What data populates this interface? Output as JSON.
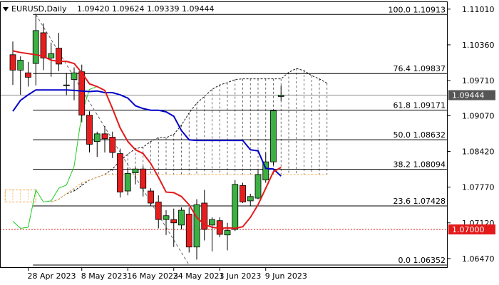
{
  "header": {
    "symbol_timeframe": "EURUSD,Daily",
    "ohlc": "1.09420 1.09624 1.09339 1.09444"
  },
  "colors": {
    "bull_body": "#3cb043",
    "bear_body": "#e61e1e",
    "wick": "#000000",
    "red_ma": "#e31a1a",
    "blue_ma": "#0000c8",
    "green_line": "#22cc22",
    "cloud_edge": "#000000",
    "cloud_fill_hatch": "#777777",
    "fib_line": "#000000",
    "current_price_line": "#8a8a8a",
    "alert_line": "#e31a1a",
    "alert_tag": "#e31a1a",
    "orange_cloud": "#f0a848"
  },
  "chart_data": {
    "type": "candlestick",
    "title": "EURUSD,Daily",
    "ylim": [
      1.063,
      1.1115
    ],
    "y_ticks": [
      "1.11010",
      "1.10360",
      "1.09710",
      "1.09070",
      "1.08420",
      "1.07770",
      "1.07120",
      "1.06470"
    ],
    "x_tick_labels": [
      "28 Apr 2023",
      "8 May 2023",
      "16 May 2023",
      "24 May 2023",
      "1 Jun 2023",
      "9 Jun 2023"
    ],
    "x_tick_candle_index": [
      2,
      9,
      15,
      21,
      27,
      33
    ],
    "candles": [
      {
        "o": 1.1018,
        "h": 1.1042,
        "l": 1.0963,
        "c": 1.099
      },
      {
        "o": 1.099,
        "h": 1.1015,
        "l": 1.0945,
        "c": 1.1008
      },
      {
        "o": 1.0985,
        "h": 1.1005,
        "l": 1.096,
        "c": 1.0977
      },
      {
        "o": 1.1002,
        "h": 1.1092,
        "l": 1.0962,
        "c": 1.1062
      },
      {
        "o": 1.1058,
        "h": 1.1075,
        "l": 1.099,
        "c": 1.1012
      },
      {
        "o": 1.1012,
        "h": 1.104,
        "l": 1.0978,
        "c": 1.102
      },
      {
        "o": 1.103,
        "h": 1.1058,
        "l": 1.0988,
        "c": 1.1001
      },
      {
        "o": 1.0962,
        "h": 1.0985,
        "l": 1.0944,
        "c": 1.0963
      },
      {
        "o": 1.0973,
        "h": 1.0995,
        "l": 1.0935,
        "c": 1.0985
      },
      {
        "o": 1.0987,
        "h": 1.1,
        "l": 1.0895,
        "c": 1.0908
      },
      {
        "o": 1.0908,
        "h": 1.0915,
        "l": 1.084,
        "c": 1.0855
      },
      {
        "o": 1.086,
        "h": 1.0878,
        "l": 1.0832,
        "c": 1.0874
      },
      {
        "o": 1.0874,
        "h": 1.0888,
        "l": 1.084,
        "c": 1.0865
      },
      {
        "o": 1.0868,
        "h": 1.0878,
        "l": 1.083,
        "c": 1.084
      },
      {
        "o": 1.0838,
        "h": 1.0847,
        "l": 1.0758,
        "c": 1.0768
      },
      {
        "o": 1.077,
        "h": 1.0812,
        "l": 1.0762,
        "c": 1.0802
      },
      {
        "o": 1.0803,
        "h": 1.0813,
        "l": 1.0782,
        "c": 1.081
      },
      {
        "o": 1.081,
        "h": 1.0815,
        "l": 1.076,
        "c": 1.0775
      },
      {
        "o": 1.077,
        "h": 1.0775,
        "l": 1.0742,
        "c": 1.0748
      },
      {
        "o": 1.075,
        "h": 1.0762,
        "l": 1.0702,
        "c": 1.0718
      },
      {
        "o": 1.0718,
        "h": 1.0735,
        "l": 1.069,
        "c": 1.0725
      },
      {
        "o": 1.0718,
        "h": 1.0738,
        "l": 1.0668,
        "c": 1.0712
      },
      {
        "o": 1.0708,
        "h": 1.074,
        "l": 1.07,
        "c": 1.0735
      },
      {
        "o": 1.0728,
        "h": 1.074,
        "l": 1.0658,
        "c": 1.0668
      },
      {
        "o": 1.0668,
        "h": 1.0755,
        "l": 1.0645,
        "c": 1.0745
      },
      {
        "o": 1.0748,
        "h": 1.0772,
        "l": 1.068,
        "c": 1.07
      },
      {
        "o": 1.0708,
        "h": 1.0722,
        "l": 1.066,
        "c": 1.0718
      },
      {
        "o": 1.0716,
        "h": 1.0722,
        "l": 1.0686,
        "c": 1.0691
      },
      {
        "o": 1.069,
        "h": 1.0712,
        "l": 1.0662,
        "c": 1.0698
      },
      {
        "o": 1.07,
        "h": 1.079,
        "l": 1.0697,
        "c": 1.0782
      },
      {
        "o": 1.078,
        "h": 1.0785,
        "l": 1.0748,
        "c": 1.075
      },
      {
        "o": 1.0752,
        "h": 1.0765,
        "l": 1.0742,
        "c": 1.076
      },
      {
        "o": 1.0757,
        "h": 1.0808,
        "l": 1.0755,
        "c": 1.08
      },
      {
        "o": 1.079,
        "h": 1.084,
        "l": 1.0785,
        "c": 1.0823
      },
      {
        "o": 1.0823,
        "h": 1.0918,
        "l": 1.0817,
        "c": 1.0916
      },
      {
        "o": 1.0942,
        "h": 1.0962,
        "l": 1.0934,
        "c": 1.0944
      }
    ],
    "red_ma": [
      1.1025,
      1.1022,
      1.102,
      1.1018,
      1.1015,
      1.1008,
      1.1006,
      1.1006,
      1.1002,
      1.0985,
      1.0965,
      1.096,
      1.0953,
      1.092,
      1.0885,
      1.086,
      1.0845,
      1.0838,
      1.082,
      1.0795,
      1.0768,
      1.0767,
      1.076,
      1.0745,
      1.0722,
      1.0709,
      1.0704,
      1.0702,
      1.0703,
      1.0702,
      1.0705,
      1.0722,
      1.0745,
      1.0775,
      1.0805,
      1.0813
    ],
    "blue_ma": [
      1.0915,
      1.0935,
      1.0945,
      1.0954,
      1.0954,
      1.0954,
      1.0954,
      1.0954,
      1.0953,
      1.0952,
      1.0951,
      1.0952,
      1.0949,
      1.0949,
      1.0945,
      1.0939,
      1.0925,
      1.092,
      1.0917,
      1.0917,
      1.0914,
      1.0906,
      1.088,
      1.0863,
      1.0862,
      1.0862,
      1.0862,
      1.0862,
      1.0862,
      1.0862,
      1.0862,
      1.0845,
      1.0843,
      1.0811,
      1.081,
      1.0797
    ],
    "green_line": [
      1.0715,
      1.0702,
      1.0704,
      1.0772,
      1.075,
      1.0752,
      1.0775,
      1.0781,
      1.0815,
      1.0911,
      1.0955,
      1.096
    ],
    "green_line_start_index": 0,
    "cloud_upper": [
      1.075,
      1.0755,
      1.0765,
      1.077,
      1.078,
      1.079,
      1.0795,
      1.08,
      1.081,
      1.0825,
      1.0837,
      1.0847,
      1.085,
      1.086,
      1.0867,
      1.0867,
      1.0873,
      1.089,
      1.0912,
      1.093,
      1.0942,
      1.0955,
      1.0963,
      1.0967,
      1.0973,
      1.0974,
      1.0974,
      1.0974,
      1.0974,
      1.0974,
      1.0974,
      1.0986,
      1.0993,
      1.0989,
      1.098,
      1.0974,
      1.0966
    ],
    "cloud_lower": [
      1.075,
      1.0755,
      1.0765,
      1.0775,
      1.0785,
      1.079,
      1.0795,
      1.08,
      1.08,
      1.08,
      1.08,
      1.08,
      1.08,
      1.08,
      1.08,
      1.08,
      1.08,
      1.08,
      1.08,
      1.08,
      1.08,
      1.08,
      1.08,
      1.08,
      1.08,
      1.08,
      1.08,
      1.08,
      1.08,
      1.08,
      1.08,
      1.08,
      1.08,
      1.08,
      1.08,
      1.08,
      1.08
    ],
    "cloud_start_index": 5,
    "orange_cloud_upper": 1.0772,
    "orange_cloud_lower": 1.075,
    "orange_cloud_range": [
      -1.0,
      3.0
    ],
    "fib_levels": [
      {
        "label": "100.0 1.10913",
        "value": 1.10913
      },
      {
        "label": "76.4 1.09837",
        "value": 1.09837
      },
      {
        "label": "61.8 1.09171",
        "value": 1.09171
      },
      {
        "label": "50.0 1.08632",
        "value": 1.08632
      },
      {
        "label": "38.2 1.08094",
        "value": 1.08094
      },
      {
        "label": "23.6 1.07428",
        "value": 1.07428
      },
      {
        "label": "0.0 1.06352",
        "value": 1.06352
      }
    ],
    "fib_trend": {
      "from_index": 3,
      "from_value": 1.10913,
      "to_index": 23,
      "to_value": 1.06352
    },
    "current_price": {
      "value": 1.09444,
      "label": "1.09444"
    },
    "alert_price": {
      "value": 1.07,
      "label": "1.07000"
    }
  }
}
